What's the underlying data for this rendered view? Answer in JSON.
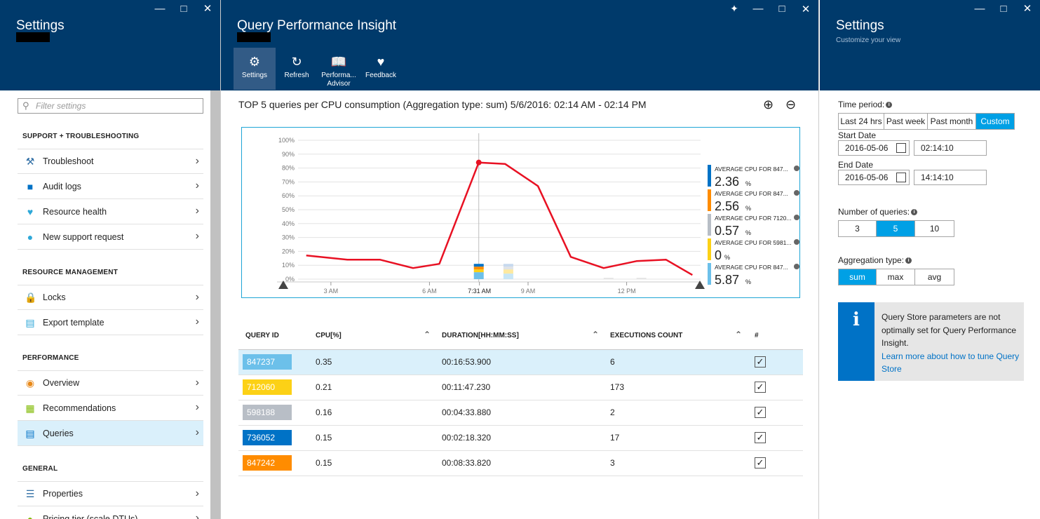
{
  "left": {
    "title": "Settings",
    "filter_placeholder": "Filter settings",
    "sections": [
      {
        "heading": "SUPPORT + TROUBLESHOOTING",
        "items": [
          "Troubleshoot",
          "Audit logs",
          "Resource health",
          "New support request"
        ]
      },
      {
        "heading": "RESOURCE MANAGEMENT",
        "items": [
          "Locks",
          "Export template"
        ]
      },
      {
        "heading": "PERFORMANCE",
        "items": [
          "Overview",
          "Recommendations",
          "Queries"
        ]
      },
      {
        "heading": "GENERAL",
        "items": [
          "Properties",
          "Pricing tier (scale DTUs)"
        ]
      }
    ],
    "active_item": "Queries"
  },
  "middle": {
    "title": "Query Performance Insight",
    "toolbar": [
      {
        "label": "Settings",
        "icon": "gear-icon"
      },
      {
        "label": "Refresh",
        "icon": "refresh-icon"
      },
      {
        "label": "Performa... Advisor",
        "icon": "book-icon"
      },
      {
        "label": "Feedback",
        "icon": "heart-icon"
      }
    ],
    "chart_heading": "TOP 5 queries per CPU consumption (Aggregation type: sum) 5/6/2016: 02:14 AM - 02:14 PM",
    "table": {
      "columns": [
        "QUERY ID",
        "CPU[%]",
        "DURATION[HH:MM:SS]",
        "EXECUTIONS COUNT",
        "#"
      ],
      "rows": [
        {
          "id": "847237",
          "cpu": "0.35",
          "duration": "00:16:53.900",
          "executions": "6",
          "color": "#6cc0ea",
          "checked": true
        },
        {
          "id": "712060",
          "cpu": "0.21",
          "duration": "00:11:47.230",
          "executions": "173",
          "color": "#fcd116",
          "checked": true
        },
        {
          "id": "598188",
          "cpu": "0.16",
          "duration": "00:04:33.880",
          "executions": "2",
          "color": "#b8bec6",
          "checked": true
        },
        {
          "id": "736052",
          "cpu": "0.15",
          "duration": "00:02:18.320",
          "executions": "17",
          "color": "#0072c6",
          "checked": true
        },
        {
          "id": "847242",
          "cpu": "0.15",
          "duration": "00:08:33.820",
          "executions": "3",
          "color": "#ff8c00",
          "checked": true
        }
      ]
    }
  },
  "chart_data": {
    "type": "line",
    "yticks": [
      "100%",
      "90%",
      "80%",
      "70%",
      "60%",
      "50%",
      "40%",
      "30%",
      "20%",
      "10%",
      "0%"
    ],
    "ylim": [
      0,
      100
    ],
    "xticks": [
      {
        "label": "3 AM",
        "t": 3.0
      },
      {
        "label": "6 AM",
        "t": 6.0
      },
      {
        "label": "7:31 AM",
        "t": 7.52
      },
      {
        "label": "9 AM",
        "t": 9.0
      },
      {
        "label": "12 PM",
        "t": 12.0
      }
    ],
    "xlim": [
      2.0,
      14.25
    ],
    "series": [
      {
        "color": "#e81123",
        "points": [
          [
            2.25,
            17
          ],
          [
            3.5,
            14
          ],
          [
            4.5,
            14
          ],
          [
            5.5,
            8
          ],
          [
            6.3,
            11
          ],
          [
            7.5,
            84
          ],
          [
            8.3,
            83
          ],
          [
            9.3,
            67
          ],
          [
            10.3,
            16
          ],
          [
            11.3,
            8
          ],
          [
            12.3,
            13
          ],
          [
            13.2,
            14
          ],
          [
            14.0,
            3
          ]
        ]
      }
    ],
    "highlight_point": [
      7.5,
      84
    ],
    "stacked_bar": {
      "t": 7.5,
      "segments": [
        {
          "color": "#6cc0ea",
          "value": 5
        },
        {
          "color": "#fcd116",
          "value": 2
        },
        {
          "color": "#ff8c00",
          "value": 2
        },
        {
          "color": "#0072c6",
          "value": 2
        }
      ]
    },
    "faded_bar": {
      "t": 8.4,
      "segments": [
        {
          "color": "#c7e6f6",
          "value": 4
        },
        {
          "color": "#fde9a0",
          "value": 3
        },
        {
          "color": "#dfe2e6",
          "value": 2
        },
        {
          "color": "#c7d9ee",
          "value": 2
        }
      ]
    },
    "legend": [
      {
        "label": "AVERAGE CPU FOR 847...",
        "value": "2.36",
        "unit": "%",
        "color": "#0072c6"
      },
      {
        "label": "AVERAGE CPU FOR 847...",
        "value": "2.56",
        "unit": "%",
        "color": "#ff8c00"
      },
      {
        "label": "AVERAGE CPU FOR 7120...",
        "value": "0.57",
        "unit": "%",
        "color": "#b8bec6"
      },
      {
        "label": "AVERAGE CPU FOR 5981...",
        "value": "0",
        "unit": "%",
        "color": "#fcd116"
      },
      {
        "label": "AVERAGE CPU FOR 847...",
        "value": "5.87",
        "unit": "%",
        "color": "#6cc0ea"
      }
    ]
  },
  "right": {
    "title": "Settings",
    "subtitle": "Customize your view",
    "time_period_label": "Time period:",
    "time_period_options": [
      "Last 24 hrs",
      "Past week",
      "Past month",
      "Custom"
    ],
    "time_period_selected": "Custom",
    "start_label": "Start Date",
    "start_date": "2016-05-06",
    "start_time": "02:14:10",
    "end_label": "End Date",
    "end_date": "2016-05-06",
    "end_time": "14:14:10",
    "num_queries_label": "Number of queries:",
    "num_queries_options": [
      "3",
      "5",
      "10"
    ],
    "num_queries_selected": "5",
    "aggregation_label": "Aggregation type:",
    "aggregation_options": [
      "sum",
      "max",
      "avg"
    ],
    "aggregation_selected": "sum",
    "notice_text": "Query Store parameters are not optimally set for Query Performance Insight.",
    "notice_link": "Learn more about how to tune Query Store"
  }
}
